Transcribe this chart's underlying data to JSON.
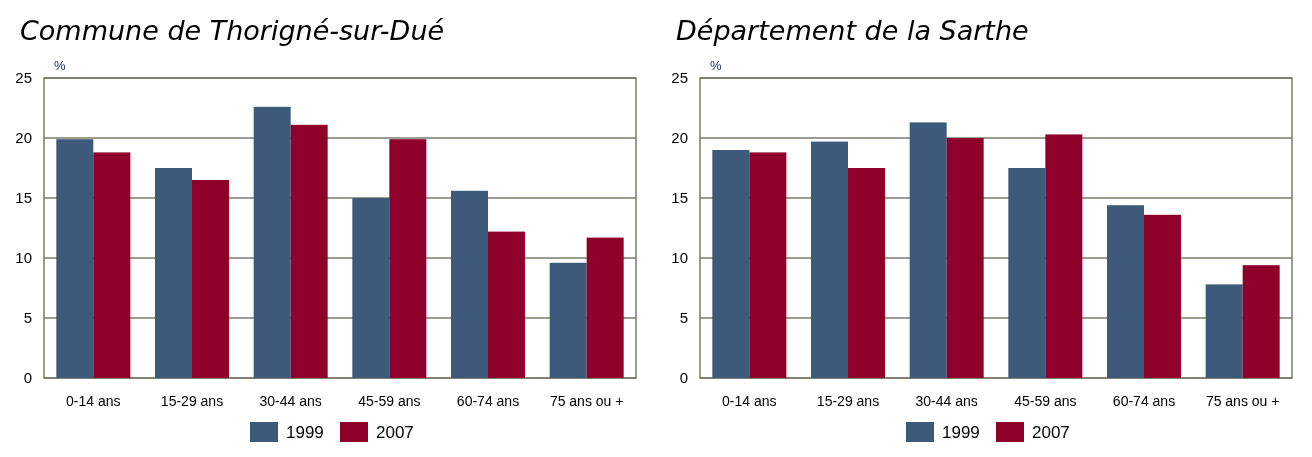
{
  "chart_data": [
    {
      "type": "bar",
      "title": "Commune de Thorigné-sur-Dué",
      "ylabel": "%",
      "categories": [
        "0-14 ans",
        "15-29 ans",
        "30-44 ans",
        "45-59 ans",
        "60-74 ans",
        "75 ans ou +"
      ],
      "series": [
        {
          "name": "1999",
          "color": "#3d5a7a",
          "values": [
            19.9,
            17.5,
            22.6,
            15.0,
            15.6,
            9.6
          ]
        },
        {
          "name": "2007",
          "color": "#8f002b",
          "values": [
            18.8,
            16.5,
            21.1,
            19.9,
            12.2,
            11.7
          ]
        }
      ],
      "ylim": [
        0,
        25
      ],
      "yticks": [
        0,
        5,
        10,
        15,
        20,
        25
      ],
      "grid": "y",
      "legend": "bottom"
    },
    {
      "type": "bar",
      "title": "Département de la Sarthe",
      "ylabel": "%",
      "categories": [
        "0-14 ans",
        "15-29 ans",
        "30-44 ans",
        "45-59 ans",
        "60-74 ans",
        "75 ans ou +"
      ],
      "series": [
        {
          "name": "1999",
          "color": "#3d5a7a",
          "values": [
            19.0,
            19.7,
            21.3,
            17.5,
            14.4,
            7.8
          ]
        },
        {
          "name": "2007",
          "color": "#8f002b",
          "values": [
            18.8,
            17.5,
            20.0,
            20.3,
            13.6,
            9.4
          ]
        }
      ],
      "ylim": [
        0,
        25
      ],
      "yticks": [
        0,
        5,
        10,
        15,
        20,
        25
      ],
      "grid": "y",
      "legend": "bottom"
    }
  ]
}
